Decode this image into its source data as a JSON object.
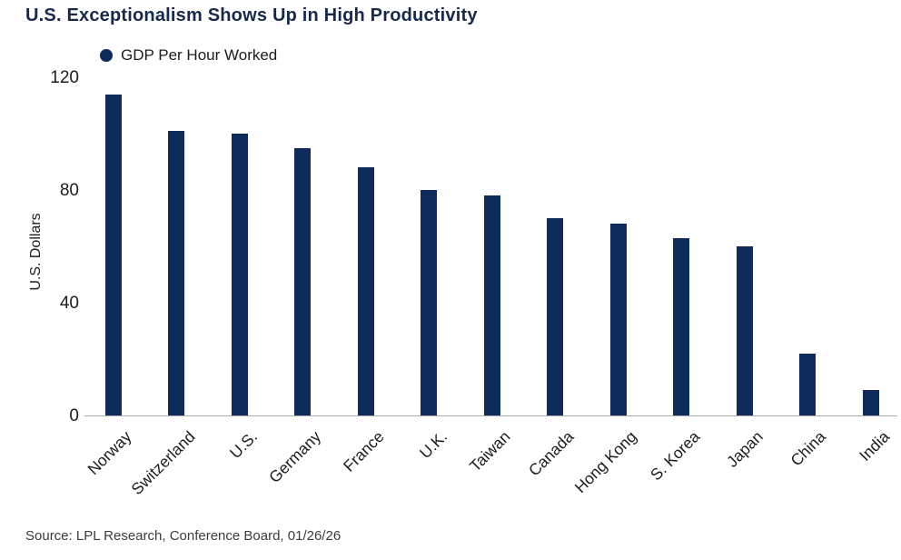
{
  "chart_data": {
    "type": "bar",
    "title": "U.S. Exceptionalism Shows Up in High Productivity",
    "legend_label": "GDP Per Hour Worked",
    "legend_position": "top-left",
    "legend_marker": "filled-circle",
    "xlabel": "",
    "ylabel": "U.S. Dollars",
    "ylim": [
      0,
      120
    ],
    "yticks": [
      0,
      40,
      80,
      120
    ],
    "grid": false,
    "categories": [
      "Norway",
      "Switzerland",
      "U.S.",
      "Germany",
      "France",
      "U.K.",
      "Taiwan",
      "Canada",
      "Hong Kong",
      "S. Korea",
      "Japan",
      "China",
      "India"
    ],
    "values": [
      114,
      101,
      100,
      95,
      88,
      80,
      78,
      70,
      68,
      63,
      60,
      22,
      9
    ]
  },
  "footer": {
    "source": "Source: LPL Research, Conference Board, 01/26/26"
  },
  "colors": {
    "bar": "#0f2b5b",
    "title_text": "#17294d",
    "axis_text": "#1c1c1c",
    "axis_line": "#ababab",
    "source_text": "#3c3c3c",
    "background": "#ffffff"
  }
}
